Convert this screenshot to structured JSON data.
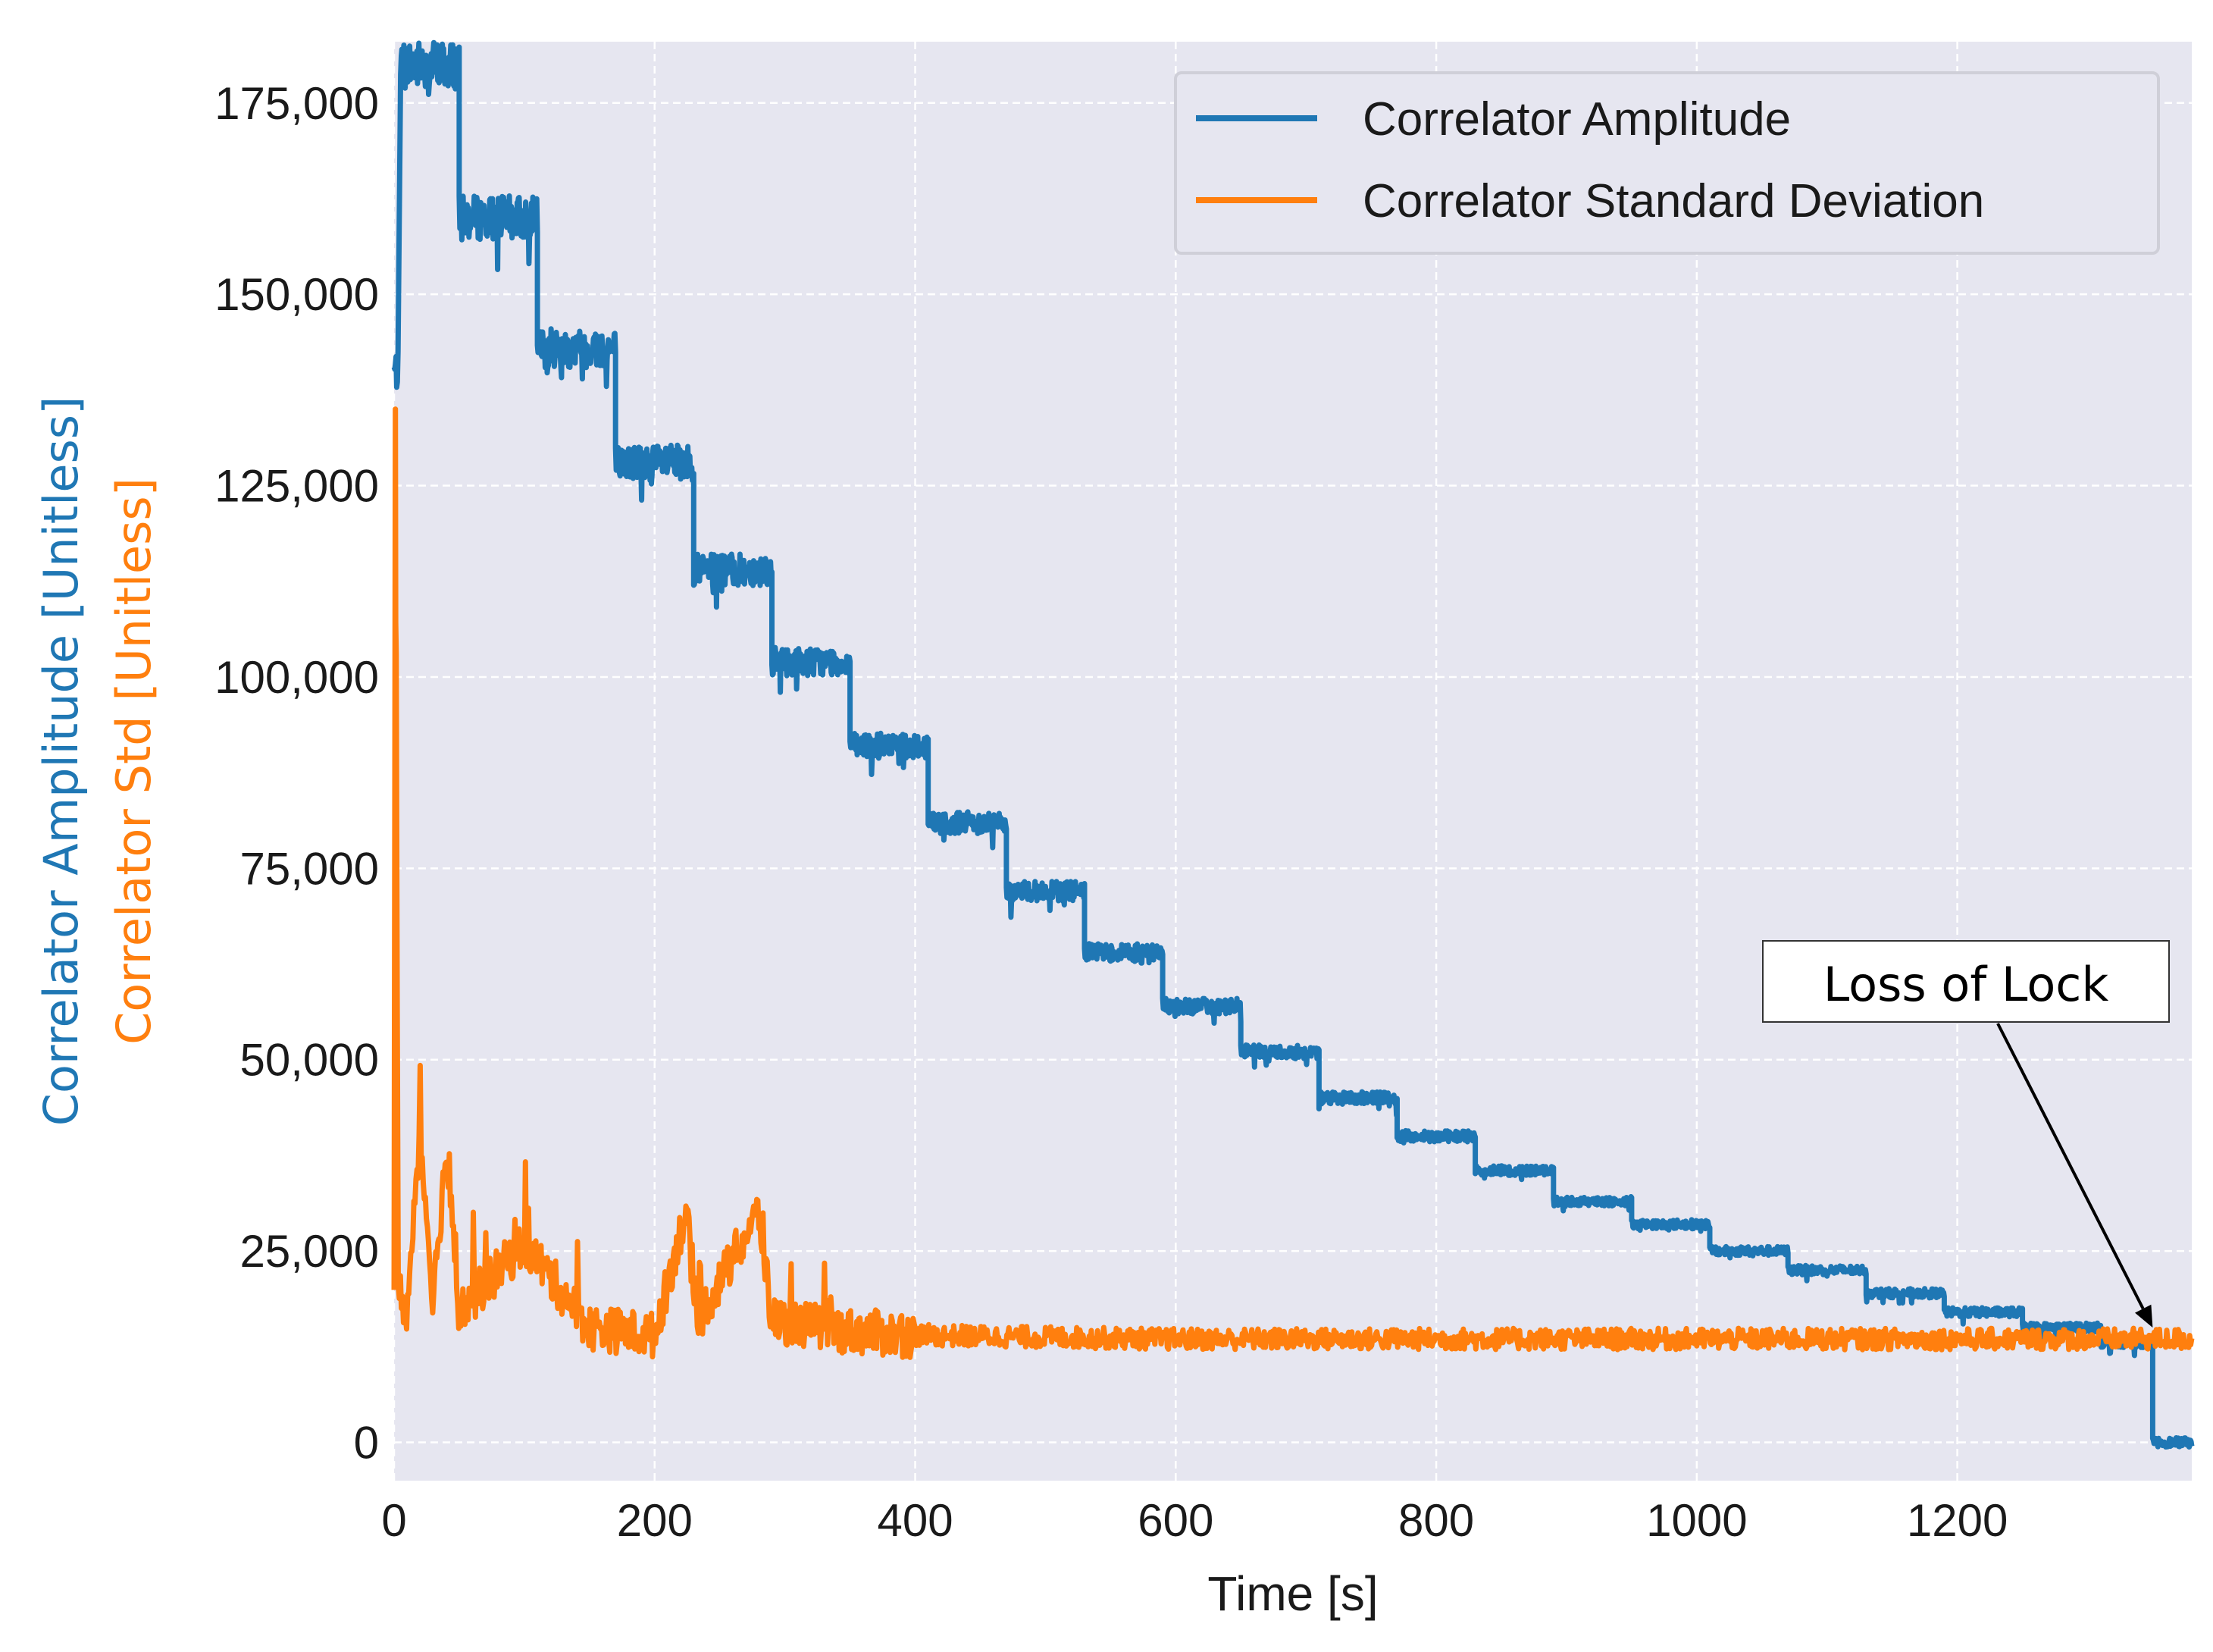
{
  "chart_data": {
    "type": "line",
    "title": "",
    "xlabel": "Time [s]",
    "ylabel_primary": "Correlator Amplitude [Unitless]",
    "ylabel_secondary": "Correlator Std [Unitless]",
    "xlim": [
      0,
      1380
    ],
    "ylim": [
      -5000,
      183000
    ],
    "x_ticks": [
      0,
      200,
      400,
      600,
      800,
      1000,
      1200
    ],
    "x_tick_labels": [
      "0",
      "200",
      "400",
      "600",
      "800",
      "1000",
      "1200"
    ],
    "y_ticks": [
      0,
      25000,
      50000,
      75000,
      100000,
      125000,
      150000,
      175000
    ],
    "y_tick_labels": [
      "0",
      "25,000",
      "50,000",
      "75,000",
      "100,000",
      "125,000",
      "150,000",
      "175,000"
    ],
    "grid": true,
    "legend_position": "top-right",
    "series": [
      {
        "name": "Correlator Amplitude",
        "color": "#1f77b4",
        "steps": [
          {
            "t_start": 0,
            "t_end": 3,
            "value": 140000
          },
          {
            "t_start": 5,
            "t_end": 50,
            "value": 180000
          },
          {
            "t_start": 50,
            "t_end": 110,
            "value": 160000
          },
          {
            "t_start": 110,
            "t_end": 170,
            "value": 143000
          },
          {
            "t_start": 170,
            "t_end": 230,
            "value": 128000
          },
          {
            "t_start": 230,
            "t_end": 290,
            "value": 114000
          },
          {
            "t_start": 290,
            "t_end": 350,
            "value": 102000
          },
          {
            "t_start": 350,
            "t_end": 410,
            "value": 91000
          },
          {
            "t_start": 410,
            "t_end": 470,
            "value": 81000
          },
          {
            "t_start": 470,
            "t_end": 530,
            "value": 72000
          },
          {
            "t_start": 530,
            "t_end": 590,
            "value": 64000
          },
          {
            "t_start": 590,
            "t_end": 650,
            "value": 57000
          },
          {
            "t_start": 650,
            "t_end": 710,
            "value": 51000
          },
          {
            "t_start": 710,
            "t_end": 770,
            "value": 45000
          },
          {
            "t_start": 770,
            "t_end": 830,
            "value": 40000
          },
          {
            "t_start": 830,
            "t_end": 890,
            "value": 35500
          },
          {
            "t_start": 890,
            "t_end": 950,
            "value": 31500
          },
          {
            "t_start": 950,
            "t_end": 1010,
            "value": 28500
          },
          {
            "t_start": 1010,
            "t_end": 1070,
            "value": 25000
          },
          {
            "t_start": 1070,
            "t_end": 1130,
            "value": 22500
          },
          {
            "t_start": 1130,
            "t_end": 1190,
            "value": 19500
          },
          {
            "t_start": 1190,
            "t_end": 1250,
            "value": 17000
          },
          {
            "t_start": 1250,
            "t_end": 1310,
            "value": 15000
          },
          {
            "t_start": 1310,
            "t_end": 1350,
            "value": 13000
          },
          {
            "t_start": 1350,
            "t_end": 1380,
            "value": 0
          }
        ]
      },
      {
        "name": "Correlator Standard Deviation",
        "color": "#ff7f0e",
        "points": [
          [
            0,
            22000
          ],
          [
            1,
            135000
          ],
          [
            3,
            20000
          ],
          [
            10,
            17000
          ],
          [
            20,
            40000
          ],
          [
            30,
            19000
          ],
          [
            40,
            38000
          ],
          [
            50,
            17000
          ],
          [
            100,
            26000
          ],
          [
            150,
            15000
          ],
          [
            200,
            14000
          ],
          [
            225,
            31000
          ],
          [
            230,
            15000
          ],
          [
            280,
            30000
          ],
          [
            290,
            16000
          ],
          [
            350,
            14500
          ],
          [
            400,
            14000
          ],
          [
            600,
            13500
          ],
          [
            800,
            13500
          ],
          [
            1000,
            13500
          ],
          [
            1200,
            13500
          ],
          [
            1380,
            13500
          ]
        ]
      }
    ],
    "annotations": [
      {
        "text": "Loss of Lock",
        "points_to": {
          "x": 1350,
          "y": 15000
        }
      }
    ]
  }
}
